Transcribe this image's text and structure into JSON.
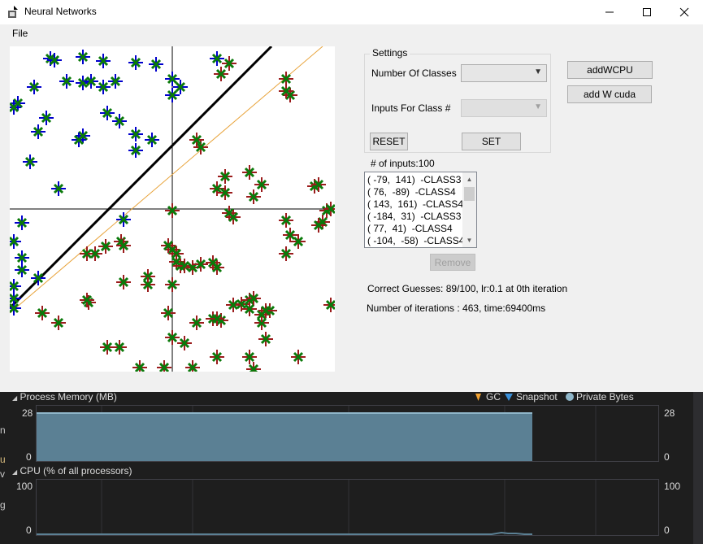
{
  "window": {
    "title": "Neural Networks",
    "controls": {
      "minimize": "—",
      "maximize": "☐",
      "close": "✕"
    }
  },
  "menu": {
    "file": "File"
  },
  "settings": {
    "group_title": "Settings",
    "num_classes_label": "Number Of Classes",
    "inputs_for_class_label": "Inputs For Class #",
    "reset_label": "RESET",
    "set_label": "SET"
  },
  "buttons": {
    "add_wcpu": "addWCPU",
    "add_w_cuda": "add W cuda",
    "remove": "Remove"
  },
  "inputs_count_label": "# of inputs:100",
  "input_list": [
    "( -79,  141)  -CLASS3",
    "( 76,  -89)  -CLASS4",
    "( 143,  161)  -CLASS4",
    "( -184,  31)  -CLASS3",
    "( 77,  41)  -CLASS4",
    "( -104,  -58)  -CLASS4"
  ],
  "stats": {
    "correct_guesses": "Correct Guesses: 89/100, lr:0.1 at 0th iteration",
    "iterations": "Number of iterations : 463, time:69400ms"
  },
  "profiler": {
    "memory_title": "Process Memory (MB)",
    "legend": {
      "gc": "GC",
      "snapshot": "Snapshot",
      "private_bytes": "Private Bytes"
    },
    "memory_axis": {
      "max": "28",
      "min": "0"
    },
    "memory_fill_fraction": 0.795,
    "cpu_title": "CPU (% of all processors)",
    "cpu_axis": {
      "max": "100",
      "min": "0"
    },
    "left_edge_chars": [
      "n",
      "u",
      "v",
      "g"
    ]
  },
  "colors": {
    "class3_marker": "#0000cc",
    "class4_marker": "#9b1c1c",
    "marker_dot": "#0a7a0a",
    "boundary_thick": "#000000",
    "boundary_thin": "#e8a33a",
    "memory_fill": "#5b8094",
    "memory_fill_top": "#8fb6c9"
  },
  "plot": {
    "class3_points": [
      [
        -150,
        185
      ],
      [
        -145,
        183
      ],
      [
        -110,
        187
      ],
      [
        -85,
        182
      ],
      [
        -45,
        180
      ],
      [
        -20,
        178
      ],
      [
        55,
        185
      ],
      [
        -170,
        150
      ],
      [
        -190,
        130
      ],
      [
        -195,
        125
      ],
      [
        -130,
        157
      ],
      [
        -110,
        155
      ],
      [
        -100,
        157
      ],
      [
        -85,
        150
      ],
      [
        -70,
        157
      ],
      [
        0,
        160
      ],
      [
        10,
        150
      ],
      [
        0,
        140
      ],
      [
        -80,
        118
      ],
      [
        -65,
        108
      ],
      [
        -155,
        112
      ],
      [
        -165,
        95
      ],
      [
        -110,
        90
      ],
      [
        -115,
        85
      ],
      [
        -45,
        92
      ],
      [
        -45,
        72
      ],
      [
        -25,
        85
      ],
      [
        -175,
        58
      ],
      [
        -140,
        25
      ],
      [
        -60,
        -13
      ],
      [
        -185,
        -17
      ],
      [
        -195,
        -40
      ],
      [
        -185,
        -60
      ],
      [
        -165,
        -85
      ],
      [
        -195,
        -95
      ],
      [
        -195,
        -110
      ],
      [
        -195,
        -122
      ],
      [
        -185,
        -75
      ]
    ],
    "class4_points": [
      [
        70,
        179
      ],
      [
        60,
        166
      ],
      [
        145,
        140
      ],
      [
        140,
        145
      ],
      [
        140,
        160
      ],
      [
        35,
        76
      ],
      [
        30,
        85
      ],
      [
        65,
        40
      ],
      [
        55,
        25
      ],
      [
        110,
        30
      ],
      [
        95,
        45
      ],
      [
        65,
        20
      ],
      [
        70,
        -5
      ],
      [
        75,
        -10
      ],
      [
        0,
        -2
      ],
      [
        -160,
        -128
      ],
      [
        -140,
        -140
      ],
      [
        185,
        -16
      ],
      [
        180,
        -20
      ],
      [
        155,
        -40
      ],
      [
        140,
        -14
      ],
      [
        140,
        -55
      ],
      [
        145,
        -32
      ],
      [
        175,
        28
      ],
      [
        180,
        30
      ],
      [
        190,
        -2
      ],
      [
        195,
        0
      ],
      [
        100,
        15
      ],
      [
        -105,
        -55
      ],
      [
        -95,
        -55
      ],
      [
        -82,
        -46
      ],
      [
        -63,
        -40
      ],
      [
        -103,
        -115
      ],
      [
        -60,
        -45
      ],
      [
        -30,
        -83
      ],
      [
        0,
        -50
      ],
      [
        -5,
        -45
      ],
      [
        5,
        -55
      ],
      [
        5,
        -65
      ],
      [
        10,
        -70
      ],
      [
        15,
        -70
      ],
      [
        -30,
        -93
      ],
      [
        -60,
        -90
      ],
      [
        0,
        -93
      ],
      [
        -105,
        -112
      ],
      [
        25,
        -72
      ],
      [
        55,
        -72
      ],
      [
        50,
        -66
      ],
      [
        30,
        -140
      ],
      [
        85,
        -117
      ],
      [
        95,
        -112
      ],
      [
        100,
        -110
      ],
      [
        120,
        -125
      ],
      [
        110,
        -140
      ],
      [
        110,
        -130
      ],
      [
        115,
        -125
      ],
      [
        95,
        -123
      ],
      [
        75,
        -118
      ],
      [
        60,
        -137
      ],
      [
        -5,
        -128
      ],
      [
        50,
        -135
      ],
      [
        55,
        -135
      ],
      [
        35,
        -68
      ],
      [
        55,
        -182
      ],
      [
        25,
        -195
      ],
      [
        -10,
        -195
      ],
      [
        -40,
        -195
      ],
      [
        0,
        -158
      ],
      [
        15,
        -165
      ],
      [
        -65,
        -170
      ],
      [
        -80,
        -170
      ],
      [
        155,
        -182
      ],
      [
        95,
        -182
      ],
      [
        100,
        -197
      ],
      [
        115,
        -160
      ],
      [
        195,
        -118
      ]
    ]
  }
}
